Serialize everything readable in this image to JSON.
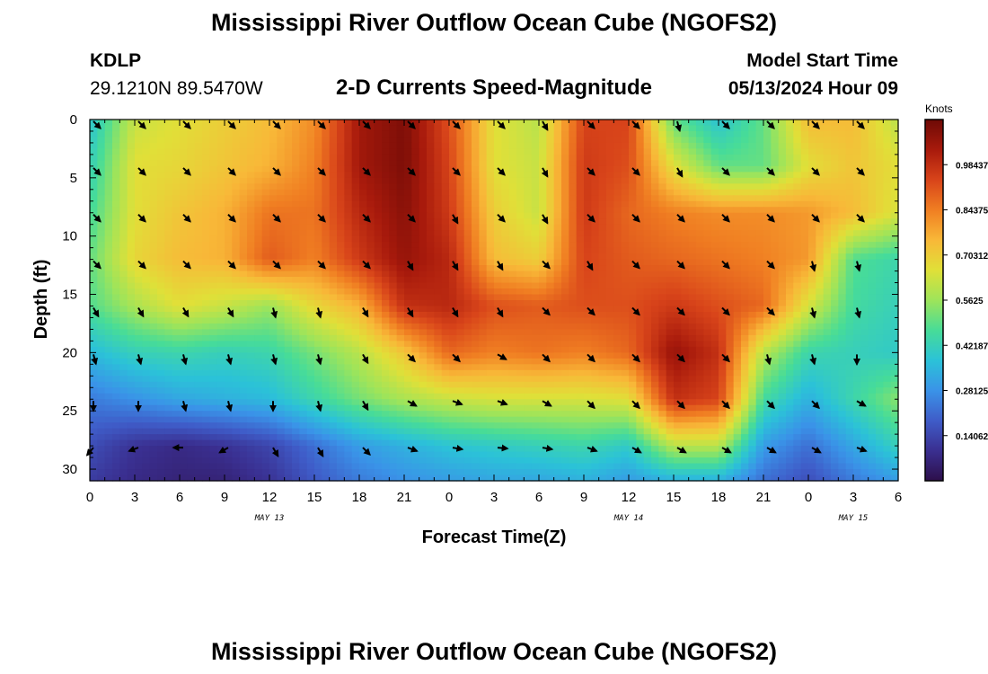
{
  "header": {
    "title": "Mississippi River Outflow Ocean Cube (NGOFS2)",
    "station": "KDLP",
    "coords": "29.1210N  89.5470W",
    "subtitle": "2-D Currents Speed-Magnitude",
    "model_label": "Model Start Time",
    "model_time": "05/13/2024 Hour 09"
  },
  "footer": {
    "title": "Mississippi River Outflow Ocean Cube (NGOFS2)"
  },
  "colors": {
    "colormap": [
      "#2d0f4a",
      "#3a2f90",
      "#3f5cc8",
      "#3a93e8",
      "#2bc2d8",
      "#47dc98",
      "#9ee45a",
      "#e0e038",
      "#f8b838",
      "#f07e22",
      "#d8441a",
      "#a81a0c",
      "#6e0a06"
    ]
  },
  "chart_data": {
    "type": "heatmap",
    "subtype": "depth-time currents section with direction vectors",
    "xlabel": "Forecast Time(Z)",
    "ylabel": "Depth (ft)",
    "x_range_hours": [
      0,
      54
    ],
    "y_range_ft": [
      0,
      31
    ],
    "x_ticks": [
      {
        "hour": 0,
        "label": "0"
      },
      {
        "hour": 3,
        "label": "3"
      },
      {
        "hour": 6,
        "label": "6"
      },
      {
        "hour": 9,
        "label": "9"
      },
      {
        "hour": 12,
        "label": "12"
      },
      {
        "hour": 15,
        "label": "15"
      },
      {
        "hour": 18,
        "label": "18"
      },
      {
        "hour": 21,
        "label": "21"
      },
      {
        "hour": 24,
        "label": "0"
      },
      {
        "hour": 27,
        "label": "3"
      },
      {
        "hour": 30,
        "label": "6"
      },
      {
        "hour": 33,
        "label": "9"
      },
      {
        "hour": 36,
        "label": "12"
      },
      {
        "hour": 39,
        "label": "15"
      },
      {
        "hour": 42,
        "label": "18"
      },
      {
        "hour": 45,
        "label": "21"
      },
      {
        "hour": 48,
        "label": "0"
      },
      {
        "hour": 51,
        "label": "3"
      },
      {
        "hour": 54,
        "label": "6"
      }
    ],
    "y_ticks": [
      {
        "depth": 0,
        "label": "0"
      },
      {
        "depth": 5,
        "label": "5"
      },
      {
        "depth": 10,
        "label": "10"
      },
      {
        "depth": 15,
        "label": "15"
      },
      {
        "depth": 20,
        "label": "20"
      },
      {
        "depth": 25,
        "label": "25"
      },
      {
        "depth": 30,
        "label": "30"
      }
    ],
    "date_labels": [
      {
        "hour": 12,
        "label": "MAY 13"
      },
      {
        "hour": 36,
        "label": "MAY 14"
      },
      {
        "hour": 51,
        "label": "MAY 15"
      }
    ],
    "colorbar": {
      "unit": "Knots",
      "range": [
        0,
        1.125
      ],
      "ticks": [
        {
          "value": 0.140625,
          "label": "0.140625"
        },
        {
          "value": 0.28125,
          "label": "0.28125"
        },
        {
          "value": 0.421875,
          "label": "0.421875"
        },
        {
          "value": 0.5625,
          "label": "0.5625"
        },
        {
          "value": 0.703125,
          "label": "0.703125"
        },
        {
          "value": 0.84375,
          "label": "0.84375"
        },
        {
          "value": 0.984375,
          "label": "0.984375"
        }
      ]
    },
    "speed_grid_hours": [
      0,
      3,
      6,
      9,
      12,
      15,
      18,
      21,
      24,
      27,
      30,
      33,
      36,
      39,
      42,
      45,
      48,
      51,
      54
    ],
    "speed_grid_depths": [
      0,
      4,
      8,
      12,
      16,
      20,
      24,
      28,
      31
    ],
    "speed_knots": [
      [
        0.38,
        0.62,
        0.66,
        0.7,
        0.74,
        0.82,
        1.04,
        1.1,
        0.92,
        0.66,
        0.6,
        0.94,
        0.94,
        0.5,
        0.38,
        0.5,
        0.74,
        0.74,
        0.6
      ],
      [
        0.42,
        0.66,
        0.68,
        0.72,
        0.76,
        0.84,
        1.04,
        1.1,
        0.94,
        0.66,
        0.62,
        0.96,
        0.92,
        0.66,
        0.5,
        0.5,
        0.66,
        0.72,
        0.66
      ],
      [
        0.46,
        0.66,
        0.72,
        0.76,
        0.86,
        0.86,
        1.0,
        1.08,
        0.96,
        0.7,
        0.62,
        0.96,
        0.88,
        0.84,
        0.82,
        0.82,
        0.8,
        0.74,
        0.64
      ],
      [
        0.5,
        0.68,
        0.74,
        0.76,
        0.9,
        0.84,
        0.96,
        1.06,
        1.0,
        0.74,
        0.7,
        0.94,
        0.9,
        0.88,
        0.86,
        0.84,
        0.8,
        0.48,
        0.44
      ],
      [
        0.48,
        0.58,
        0.66,
        0.62,
        0.56,
        0.68,
        0.76,
        0.98,
        1.0,
        0.92,
        0.9,
        0.92,
        0.92,
        0.96,
        0.92,
        0.88,
        0.64,
        0.46,
        0.42
      ],
      [
        0.36,
        0.42,
        0.44,
        0.42,
        0.44,
        0.52,
        0.6,
        0.72,
        0.88,
        0.84,
        0.86,
        0.84,
        0.88,
        1.06,
        0.98,
        0.6,
        0.44,
        0.42,
        0.4
      ],
      [
        0.24,
        0.28,
        0.32,
        0.34,
        0.36,
        0.44,
        0.52,
        0.58,
        0.62,
        0.64,
        0.64,
        0.64,
        0.66,
        0.98,
        0.94,
        0.46,
        0.34,
        0.44,
        0.54
      ],
      [
        0.16,
        0.1,
        0.08,
        0.1,
        0.14,
        0.22,
        0.3,
        0.34,
        0.38,
        0.4,
        0.42,
        0.44,
        0.4,
        0.6,
        0.6,
        0.3,
        0.22,
        0.32,
        0.42
      ],
      [
        0.12,
        0.08,
        0.06,
        0.06,
        0.1,
        0.18,
        0.24,
        0.28,
        0.3,
        0.32,
        0.32,
        0.34,
        0.3,
        0.34,
        0.34,
        0.22,
        0.16,
        0.24,
        0.3
      ]
    ],
    "vector_hours": [
      0,
      3,
      6,
      9,
      12,
      15,
      18,
      21,
      24,
      27,
      30,
      33,
      36,
      39,
      42,
      45,
      48,
      51
    ],
    "vector_depths": [
      0,
      4,
      8,
      12,
      16,
      20,
      24,
      28
    ],
    "vector_direction_deg": [
      [
        135,
        135,
        135,
        135,
        135,
        135,
        135,
        135,
        135,
        135,
        150,
        135,
        135,
        165,
        135,
        135,
        135,
        135
      ],
      [
        135,
        135,
        135,
        135,
        135,
        135,
        135,
        135,
        135,
        135,
        150,
        135,
        135,
        150,
        135,
        135,
        135,
        135
      ],
      [
        135,
        135,
        135,
        135,
        135,
        135,
        135,
        135,
        150,
        135,
        150,
        135,
        135,
        135,
        135,
        135,
        135,
        135
      ],
      [
        135,
        135,
        135,
        135,
        135,
        135,
        135,
        150,
        150,
        150,
        135,
        150,
        135,
        135,
        135,
        135,
        165,
        165
      ],
      [
        150,
        150,
        150,
        150,
        165,
        165,
        150,
        150,
        150,
        150,
        135,
        135,
        135,
        135,
        135,
        135,
        165,
        165
      ],
      [
        165,
        165,
        165,
        165,
        165,
        165,
        150,
        135,
        135,
        120,
        135,
        135,
        135,
        135,
        135,
        165,
        165,
        180
      ],
      [
        180,
        180,
        165,
        165,
        180,
        165,
        150,
        120,
        110,
        110,
        120,
        135,
        135,
        135,
        135,
        135,
        135,
        120
      ],
      [
        220,
        250,
        270,
        240,
        150,
        150,
        135,
        110,
        100,
        95,
        100,
        110,
        120,
        120,
        120,
        120,
        120,
        110
      ]
    ]
  }
}
